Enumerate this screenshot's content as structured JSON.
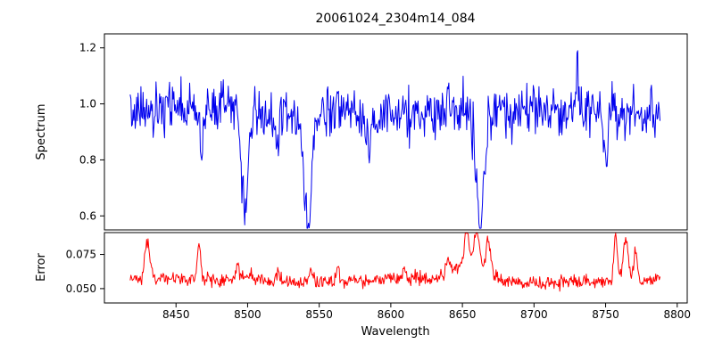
{
  "chart_data": {
    "type": "line",
    "title": "20061024_2304m14_084",
    "xlabel": "Wavelength",
    "xlim": [
      8400,
      8807
    ],
    "xticks": [
      {
        "v": 8450,
        "label": "8450"
      },
      {
        "v": 8500,
        "label": "8500"
      },
      {
        "v": 8550,
        "label": "8550"
      },
      {
        "v": 8600,
        "label": "8600"
      },
      {
        "v": 8650,
        "label": "8650"
      },
      {
        "v": 8700,
        "label": "8700"
      },
      {
        "v": 8750,
        "label": "8750"
      },
      {
        "v": 8800,
        "label": "8800"
      }
    ],
    "seed": 20061024,
    "panels": [
      {
        "name": "spectrum",
        "ylabel": "Spectrum",
        "color": "#0000ee",
        "ylim": [
          0.55,
          1.25
        ],
        "yticks": [
          {
            "v": 0.6,
            "label": "0.6"
          },
          {
            "v": 0.8,
            "label": "0.8"
          },
          {
            "v": 1.0,
            "label": "1.0"
          },
          {
            "v": 1.2,
            "label": "1.2"
          }
        ],
        "x_start": 8418,
        "x_end": 8788,
        "x_step": 0.5,
        "baseline": 0.97,
        "noise_sigma": 0.045,
        "clamp": [
          0.556,
          1.225
        ],
        "absorption_lines": [
          {
            "center": 8498,
            "depth": 0.36,
            "width": 2.2
          },
          {
            "center": 8542,
            "depth": 0.4,
            "width": 2.6
          },
          {
            "center": 8662,
            "depth": 0.44,
            "width": 2.6
          }
        ],
        "minor_features": [
          {
            "center": 8468,
            "depth": 0.12,
            "width": 1.4
          },
          {
            "center": 8520,
            "depth": 0.1,
            "width": 1.2
          },
          {
            "center": 8585,
            "depth": 0.09,
            "width": 1.2
          },
          {
            "center": 8750,
            "depth": 0.17,
            "width": 1.4
          },
          {
            "center": 8730,
            "depth": -0.16,
            "width": 1.0
          },
          {
            "center": 8563,
            "depth": -0.1,
            "width": 1.0
          }
        ]
      },
      {
        "name": "error",
        "ylabel": "Error",
        "color": "#ff0000",
        "ylim": [
          0.0395,
          0.091
        ],
        "yticks": [
          {
            "v": 0.05,
            "label": "0.050"
          },
          {
            "v": 0.075,
            "label": "0.075"
          }
        ],
        "x_start": 8418,
        "x_end": 8788,
        "x_step": 0.5,
        "baseline": 0.0555,
        "noise_sigma": 0.0025,
        "clamp": [
          0.0475,
          0.0905
        ],
        "spikes": [
          {
            "center": 8430,
            "amp": 0.028,
            "width": 1.8
          },
          {
            "center": 8466,
            "amp": 0.026,
            "width": 1.2
          },
          {
            "center": 8493,
            "amp": 0.01,
            "width": 1.0
          },
          {
            "center": 8500,
            "amp": 0.004,
            "width": 8.0
          },
          {
            "center": 8521,
            "amp": 0.009,
            "width": 1.2
          },
          {
            "center": 8545,
            "amp": 0.007,
            "width": 1.5
          },
          {
            "center": 8563,
            "amp": 0.012,
            "width": 1.0
          },
          {
            "center": 8610,
            "amp": 0.007,
            "width": 1.2
          },
          {
            "center": 8640,
            "amp": 0.012,
            "width": 1.5
          },
          {
            "center": 8653,
            "amp": 0.03,
            "width": 1.5
          },
          {
            "center": 8655,
            "amp": 0.01,
            "width": 10.0
          },
          {
            "center": 8660,
            "amp": 0.026,
            "width": 2.0
          },
          {
            "center": 8668,
            "amp": 0.028,
            "width": 1.5
          },
          {
            "center": 8757,
            "amp": 0.033,
            "width": 1.3
          },
          {
            "center": 8764,
            "amp": 0.03,
            "width": 1.8
          },
          {
            "center": 8771,
            "amp": 0.022,
            "width": 1.3
          }
        ]
      }
    ]
  }
}
